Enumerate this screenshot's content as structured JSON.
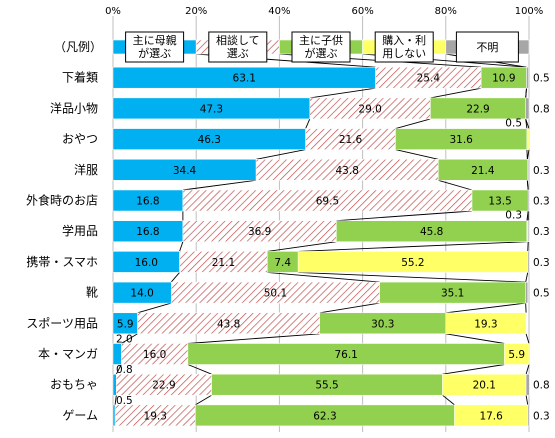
{
  "chart_data": {
    "type": "bar",
    "orientation": "horizontal",
    "stacked": true,
    "percent": true,
    "xlim": [
      0,
      100
    ],
    "x_ticks": [
      "0%",
      "20%",
      "40%",
      "60%",
      "80%",
      "100%"
    ],
    "legend": {
      "label": "（凡例）",
      "placement": "top",
      "entries": [
        {
          "series": "主に母親が選ぶ",
          "lines": [
            "主に母親",
            "が選ぶ"
          ],
          "value": 20
        },
        {
          "series": "相談して選ぶ",
          "lines": [
            "相談して",
            "選ぶ"
          ],
          "value": 20
        },
        {
          "series": "主に子供が選ぶ",
          "lines": [
            "主に子供",
            "が選ぶ"
          ],
          "value": 20
        },
        {
          "series": "購入・利用しない",
          "lines": [
            "購入・利",
            "用しない"
          ],
          "value": 20
        },
        {
          "series": "不明",
          "lines": [
            "不明"
          ],
          "value": 20
        }
      ]
    },
    "categories": [
      "下着類",
      "洋品小物",
      "おやつ",
      "洋服",
      "外食時のお店",
      "学用品",
      "携帯・スマホ",
      "靴",
      "スポーツ用品",
      "本・マンガ",
      "おもちゃ",
      "ゲーム"
    ],
    "series": [
      {
        "name": "主に母親が選ぶ",
        "color": "#00b0f0",
        "values": [
          63.1,
          47.3,
          46.3,
          34.4,
          16.8,
          16.8,
          16.0,
          14.0,
          5.9,
          2.0,
          0.8,
          0.5
        ]
      },
      {
        "name": "相談して選ぶ",
        "color": "#c0504d",
        "pattern": "diagonal-hatch",
        "values": [
          25.4,
          29.0,
          21.6,
          43.8,
          69.5,
          36.9,
          21.1,
          50.1,
          43.8,
          16.0,
          22.9,
          19.3
        ]
      },
      {
        "name": "主に子供が選ぶ",
        "color": "#92d050",
        "values": [
          10.9,
          22.9,
          31.6,
          21.4,
          13.5,
          45.8,
          7.4,
          35.1,
          30.3,
          76.1,
          55.5,
          62.3
        ]
      },
      {
        "name": "購入・利用しない",
        "color": "#ffff66",
        "values": [
          0.0,
          0.0,
          0.5,
          0.0,
          0.0,
          0.3,
          55.2,
          0.0,
          19.3,
          5.9,
          20.1,
          17.6
        ]
      },
      {
        "name": "不明",
        "color": "#a6a6a6",
        "values": [
          0.5,
          0.8,
          0.0,
          0.3,
          0.3,
          0.3,
          0.3,
          0.5,
          0.0,
          0.0,
          0.8,
          0.3
        ]
      }
    ],
    "labels": [
      [
        "63.1",
        "25.4",
        "10.9",
        "",
        "0.5"
      ],
      [
        "47.3",
        "29.0",
        "22.9",
        "",
        "0.8"
      ],
      [
        "46.3",
        "21.6",
        "31.6",
        "0.5",
        ""
      ],
      [
        "34.4",
        "43.8",
        "21.4",
        "",
        "0.3"
      ],
      [
        "16.8",
        "69.5",
        "13.5",
        "",
        "0.3"
      ],
      [
        "16.8",
        "36.9",
        "45.8",
        "0.3",
        "0.3"
      ],
      [
        "16.0",
        "21.1",
        "7.4",
        "55.2",
        "0.3"
      ],
      [
        "14.0",
        "50.1",
        "35.1",
        "",
        "0.5"
      ],
      [
        "5.9",
        "43.8",
        "30.3",
        "19.3",
        ""
      ],
      [
        "2.0",
        "16.0",
        "76.1",
        "5.9",
        ""
      ],
      [
        "0.8",
        "22.9",
        "55.5",
        "20.1",
        "0.8"
      ],
      [
        "0.5",
        "19.3",
        "62.3",
        "17.6",
        "0.3"
      ]
    ]
  }
}
